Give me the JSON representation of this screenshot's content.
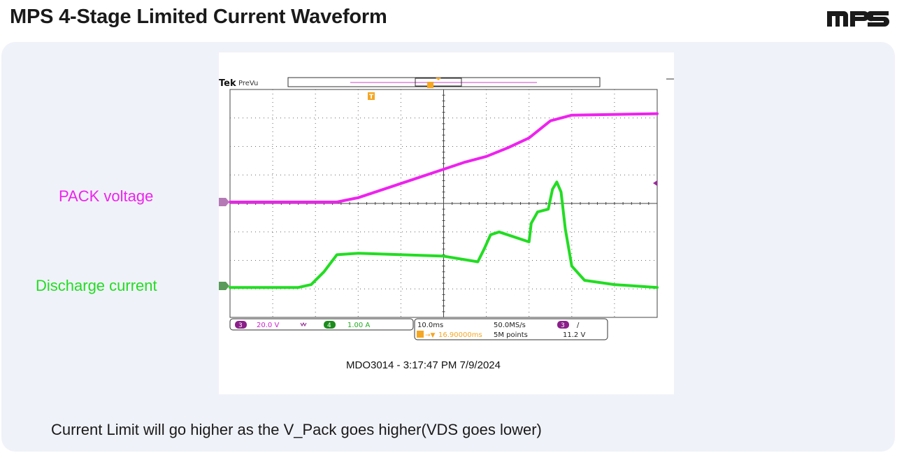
{
  "header": {
    "title": "MPS 4-Stage Limited Current Waveform",
    "logo_text": "MPS"
  },
  "labels": {
    "pack_voltage": "PACK voltage",
    "discharge_current": "Discharge current"
  },
  "footnote": "Current Limit will go higher as the V_Pack goes higher(VDS goes lower)",
  "scope": {
    "brand": "Tek",
    "mode": "PreVu",
    "trigger_marker": "T",
    "ch3_badge": "3",
    "ch3_scale": "20.0 V",
    "bw_icon": "bandwidth-limit-icon",
    "ch4_badge": "4",
    "ch4_scale": "1.00 A",
    "time_div": "10.0ms",
    "sample_rate": "50.0MS/s",
    "trig_badge": "3",
    "trig_slope": "/",
    "trig_delay": "16.90000ms",
    "record_length": "5M points",
    "trig_level": "11.2 V",
    "timestamp": "MDO3014 - 3:17:47 PM   7/9/2024",
    "colors": {
      "ch3": "#ee22ee",
      "ch4": "#22dd22",
      "trigger": "#f5a623",
      "grid": "#666666"
    }
  },
  "chart_data": {
    "type": "line",
    "xlabel": "",
    "ylabel": "",
    "x_unit_per_div": "10.0ms",
    "grid": true,
    "series": [
      {
        "channel": "3",
        "scale": "20.0 V",
        "color": "#ee22ee",
        "x_div": [
          0,
          2.5,
          3.0,
          3.5,
          4.5,
          5.0,
          5.5,
          6.0,
          6.5,
          7.0,
          7.5,
          8.0,
          10.0
        ],
        "y_div": [
          0.05,
          0.05,
          0.2,
          0.45,
          0.95,
          1.2,
          1.45,
          1.65,
          1.95,
          2.3,
          2.9,
          3.1,
          3.15
        ]
      },
      {
        "channel": "4",
        "scale": "1.00 A",
        "color": "#22dd22",
        "x_div": [
          0,
          1.6,
          1.9,
          2.2,
          2.5,
          3.0,
          5.0,
          5.8,
          5.95,
          6.1,
          6.3,
          7.0,
          7.05,
          7.2,
          7.45,
          7.55,
          7.65,
          7.75,
          7.85,
          8.0,
          8.3,
          9.0,
          10.0
        ],
        "y_div": [
          -2.95,
          -2.95,
          -2.85,
          -2.4,
          -1.8,
          -1.75,
          -1.85,
          -2.05,
          -1.6,
          -1.1,
          -1.0,
          -1.35,
          -0.7,
          -0.3,
          -0.2,
          0.5,
          0.75,
          0.4,
          -0.9,
          -2.2,
          -2.7,
          -2.85,
          -2.95
        ]
      }
    ]
  }
}
